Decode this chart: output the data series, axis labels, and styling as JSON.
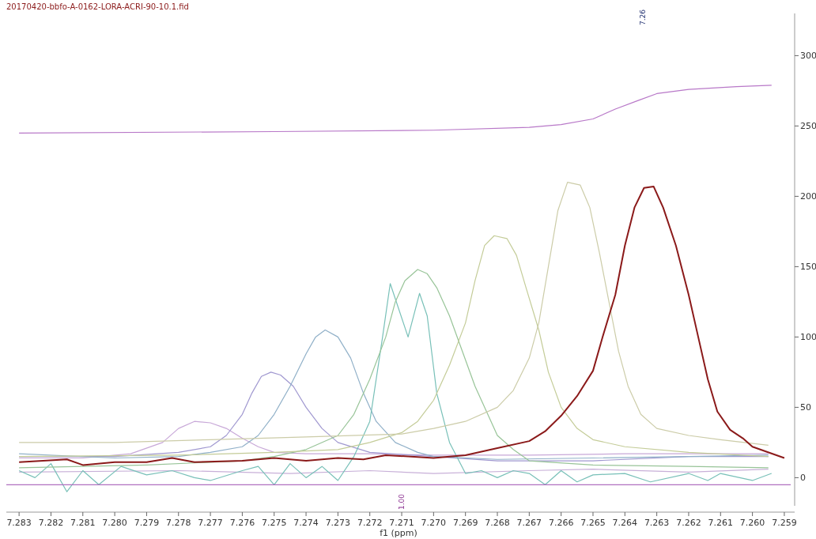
{
  "chart_data": {
    "type": "line",
    "title": "20170420-bbfo-A-0162-LORA-ACRI-90-10.1.fid",
    "xlabel": "f1 (ppm)",
    "xlim": [
      7.2834,
      7.2588
    ],
    "ylim": [
      -20,
      330
    ],
    "xticks": [
      7.283,
      7.282,
      7.281,
      {
        "value": 7.28,
        "label": "7.280"
      },
      7.279,
      7.278,
      7.277,
      7.276,
      7.275,
      7.274,
      7.273,
      7.272,
      7.271,
      {
        "value": 7.27,
        "label": "7.270"
      },
      7.269,
      7.268,
      7.267,
      7.266,
      7.265,
      7.264,
      7.263,
      7.262,
      7.261,
      {
        "value": 7.26,
        "label": "7.260"
      },
      7.259
    ],
    "yticks": [
      0,
      50,
      100,
      150,
      200,
      250,
      300
    ],
    "grid": false,
    "marker": "none",
    "line_style": "solid",
    "ref_lines": [
      {
        "axis": "y",
        "value": -5,
        "color": "#b070c0"
      }
    ],
    "annotations": [
      "7.26",
      "1.00"
    ],
    "series": [
      {
        "color": "#b878c8",
        "x": [
          7.283,
          7.275,
          7.27,
          7.267,
          7.266,
          7.265,
          7.2643,
          7.2636,
          7.263,
          7.262,
          7.2605,
          7.2594
        ],
        "values": [
          245,
          246,
          247,
          249,
          251,
          255,
          262,
          268,
          273,
          276,
          278,
          279
        ]
      },
      {
        "color": "#c8b0d8",
        "x": [
          7.283,
          7.278,
          7.2745,
          7.272,
          7.27,
          7.267,
          7.265,
          7.262,
          7.2595
        ],
        "values": [
          4,
          5,
          3,
          5,
          3,
          5,
          6,
          4,
          6
        ]
      },
      {
        "color": "#c8a8d8",
        "x": [
          7.283,
          7.281,
          7.2795,
          7.2785,
          7.278,
          7.2775,
          7.277,
          7.2765,
          7.276,
          7.2755,
          7.275,
          7.274,
          7.272,
          7.27,
          7.267,
          7.264,
          7.2595
        ],
        "values": [
          14,
          14,
          17,
          25,
          35,
          40,
          39,
          35,
          28,
          22,
          18,
          17,
          17,
          16,
          16,
          17,
          17
        ]
      },
      {
        "color": "#a098d0",
        "x": [
          7.283,
          7.28,
          7.278,
          7.277,
          7.2765,
          7.276,
          7.2757,
          7.2754,
          7.2751,
          7.2748,
          7.2744,
          7.274,
          7.2735,
          7.273,
          7.272,
          7.27,
          7.268,
          7.265,
          7.262,
          7.2595
        ],
        "values": [
          15,
          15,
          18,
          22,
          30,
          45,
          60,
          72,
          75,
          73,
          65,
          50,
          35,
          25,
          18,
          15,
          12,
          12,
          15,
          15
        ]
      },
      {
        "color": "#90b0c8",
        "x": [
          7.283,
          7.28,
          7.278,
          7.277,
          7.276,
          7.2755,
          7.275,
          7.2745,
          7.274,
          7.2737,
          7.2734,
          7.273,
          7.2726,
          7.2722,
          7.2718,
          7.2712,
          7.2705,
          7.27,
          7.268,
          7.265,
          7.262,
          7.2595
        ],
        "values": [
          17,
          14,
          15,
          18,
          22,
          30,
          45,
          65,
          88,
          100,
          105,
          100,
          85,
          60,
          40,
          25,
          18,
          15,
          13,
          14,
          15,
          16
        ]
      },
      {
        "color": "#78c0b8",
        "x": [
          7.283,
          7.2825,
          7.282,
          7.2815,
          7.281,
          7.2805,
          7.2798,
          7.279,
          7.2782,
          7.2775,
          7.277,
          7.276,
          7.2755,
          7.275,
          7.2745,
          7.274,
          7.2735,
          7.273,
          7.2725,
          7.272,
          7.2716,
          7.27136,
          7.2708,
          7.27044,
          7.2702,
          7.2699,
          7.2695,
          7.269,
          7.2685,
          7.268,
          7.2675,
          7.267,
          7.2665,
          7.266,
          7.2655,
          7.265,
          7.264,
          7.2632,
          7.262,
          7.2614,
          7.261,
          7.26,
          7.2594
        ],
        "values": [
          5,
          0,
          10,
          -10,
          5,
          -5,
          8,
          2,
          5,
          0,
          -2,
          5,
          8,
          -5,
          10,
          0,
          8,
          -2,
          15,
          40,
          100,
          138,
          100,
          131,
          115,
          60,
          25,
          3,
          5,
          0,
          5,
          3,
          -5,
          5,
          -3,
          2,
          3,
          -3,
          3,
          -2,
          3,
          -2,
          3
        ]
      },
      {
        "color": "#98c498",
        "x": [
          7.283,
          7.279,
          7.276,
          7.275,
          7.274,
          7.273,
          7.2725,
          7.272,
          7.2715,
          7.2712,
          7.2709,
          7.2705,
          7.2702,
          7.2699,
          7.2695,
          7.2691,
          7.2687,
          7.2683,
          7.268,
          7.2675,
          7.267,
          7.265,
          7.262,
          7.2595
        ],
        "values": [
          7,
          9,
          12,
          15,
          20,
          30,
          45,
          70,
          100,
          125,
          140,
          148,
          145,
          135,
          115,
          90,
          65,
          45,
          30,
          20,
          12,
          9,
          8,
          7
        ]
      },
      {
        "color": "#c4cc98",
        "x": [
          7.283,
          7.278,
          7.275,
          7.273,
          7.272,
          7.271,
          7.2705,
          7.27,
          7.2695,
          7.269,
          7.2687,
          7.2684,
          7.2681,
          7.2677,
          7.2674,
          7.2671,
          7.2667,
          7.2664,
          7.266,
          7.2655,
          7.265,
          7.264,
          7.262,
          7.2595
        ],
        "values": [
          15,
          16,
          18,
          20,
          25,
          32,
          40,
          55,
          80,
          110,
          140,
          165,
          172,
          170,
          158,
          135,
          105,
          75,
          50,
          35,
          27,
          22,
          18,
          15
        ]
      },
      {
        "color": "#cccca8",
        "x": [
          7.283,
          7.28,
          7.277,
          7.274,
          7.271,
          7.27,
          7.269,
          7.268,
          7.2675,
          7.267,
          7.2667,
          7.2664,
          7.2661,
          7.2658,
          7.2654,
          7.2651,
          7.2648,
          7.2645,
          7.2642,
          7.2639,
          7.2635,
          7.263,
          7.262,
          7.261,
          7.2595
        ],
        "values": [
          25,
          25,
          27,
          29,
          31,
          35,
          40,
          50,
          62,
          85,
          110,
          150,
          190,
          210,
          208,
          192,
          160,
          125,
          90,
          65,
          45,
          35,
          30,
          27,
          23
        ]
      },
      {
        "color": "#8b1a1a",
        "x": [
          7.283,
          7.2815,
          7.281,
          7.28,
          7.279,
          7.2782,
          7.2775,
          7.276,
          7.275,
          7.274,
          7.273,
          7.2722,
          7.2715,
          7.27,
          7.269,
          7.268,
          7.267,
          7.2665,
          7.266,
          7.2655,
          7.265,
          7.2647,
          7.2643,
          7.264,
          7.2637,
          7.2634,
          7.2631,
          7.2628,
          7.2624,
          7.262,
          7.2617,
          7.2614,
          7.2611,
          7.2607,
          7.2603,
          7.26,
          7.259
        ],
        "values": [
          11,
          13,
          9,
          11,
          11,
          14,
          11,
          12,
          14,
          12,
          14,
          13,
          16,
          14,
          16,
          21,
          26,
          33,
          44,
          58,
          76,
          100,
          130,
          165,
          192,
          206,
          207,
          192,
          165,
          130,
          100,
          70,
          47,
          34,
          28,
          22,
          14
        ]
      }
    ]
  }
}
